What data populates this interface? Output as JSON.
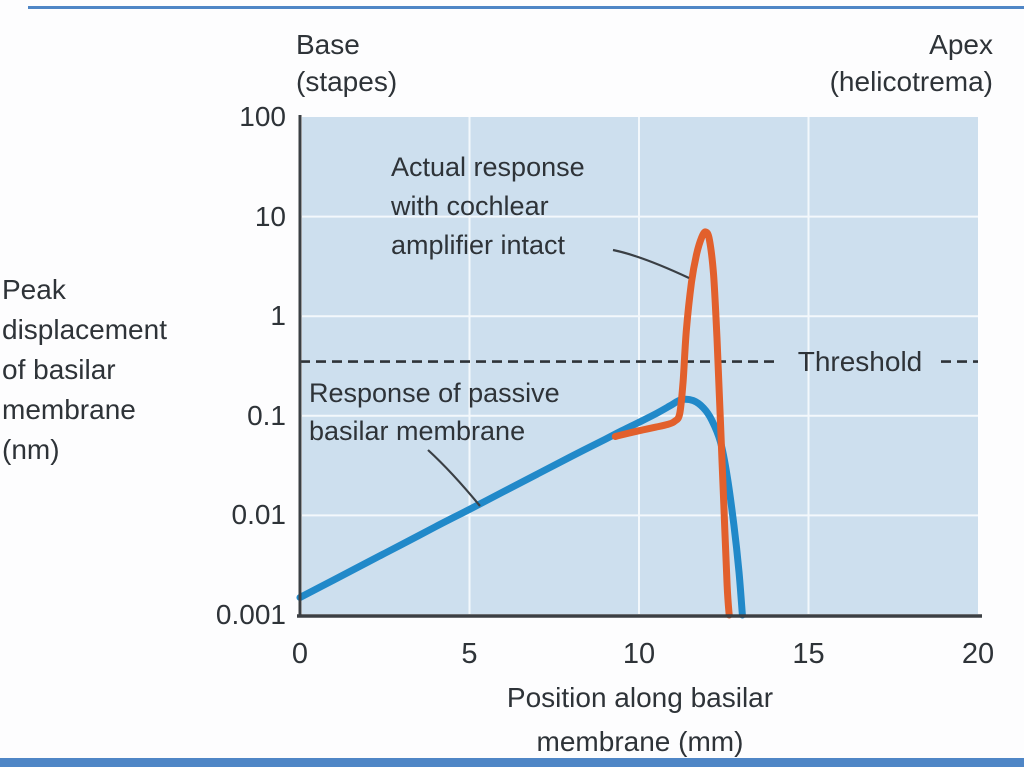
{
  "labels": {
    "base": "Base\n(stapes)",
    "apex": "Apex\n(helicotrema)"
  },
  "annotations": {
    "active_curve": "Actual response\nwith cochlear\namplifier intact",
    "passive_curve": "Response of passive\nbasilar membrane",
    "threshold": "Threshold"
  },
  "colors": {
    "panel_bg": "#cddfee",
    "grid": "#f3f8fc",
    "passive_curve": "#2189c9",
    "active_curve": "#e2602c",
    "axis": "#3b3f43",
    "text": "#2e3338",
    "accent_bar": "#4f86c6",
    "callout": "#3a3f44"
  },
  "chart_data": {
    "type": "line",
    "title": "",
    "xlabel": "Position along basilar\nmembrane (mm)",
    "ylabel": "Peak\ndisplacement\nof basilar\nmembrane\n(nm)",
    "x_scale": "linear",
    "y_scale": "log",
    "xlim": [
      0,
      20
    ],
    "ylim": [
      0.001,
      100
    ],
    "x_ticks": {
      "values": [
        0,
        5,
        10,
        15,
        20
      ],
      "labels": [
        "0",
        "5",
        "10",
        "15",
        "20"
      ]
    },
    "y_ticks": {
      "values": [
        100,
        10,
        1,
        0.1,
        0.01,
        0.001
      ],
      "labels": [
        "100",
        "10",
        "1",
        "0.1",
        "0.01",
        "0.001"
      ]
    },
    "x_gridlines": [
      5,
      10,
      15
    ],
    "y_gridlines": [
      10,
      1,
      0.1,
      0.01
    ],
    "grid": "on",
    "legend_position": "inline-annotations",
    "threshold_line": {
      "value": 0.35,
      "style": "dashed",
      "label": "Threshold"
    },
    "series": [
      {
        "name": "Response of passive basilar membrane",
        "color_key": "passive_curve",
        "points": [
          [
            0,
            0.0015
          ],
          [
            1,
            0.00225
          ],
          [
            2,
            0.0034
          ],
          [
            3,
            0.0051
          ],
          [
            4,
            0.0077
          ],
          [
            5,
            0.0115
          ],
          [
            6,
            0.0173
          ],
          [
            7,
            0.026
          ],
          [
            8,
            0.039
          ],
          [
            9,
            0.058
          ],
          [
            9.5,
            0.071
          ],
          [
            10,
            0.086
          ],
          [
            10.5,
            0.105
          ],
          [
            10.9,
            0.125
          ],
          [
            11.25,
            0.145
          ],
          [
            11.6,
            0.142
          ],
          [
            11.9,
            0.12
          ],
          [
            12.15,
            0.09
          ],
          [
            12.4,
            0.055
          ],
          [
            12.6,
            0.025
          ],
          [
            12.8,
            0.008
          ],
          [
            12.95,
            0.0027
          ],
          [
            13.05,
            0.001
          ]
        ]
      },
      {
        "name": "Actual response with cochlear amplifier intact",
        "color_key": "active_curve",
        "points": [
          [
            9.3,
            0.062
          ],
          [
            9.7,
            0.067
          ],
          [
            10.1,
            0.072
          ],
          [
            10.5,
            0.077
          ],
          [
            10.85,
            0.082
          ],
          [
            11.05,
            0.088
          ],
          [
            11.2,
            0.105
          ],
          [
            11.3,
            0.22
          ],
          [
            11.4,
            0.75
          ],
          [
            11.55,
            2.2
          ],
          [
            11.7,
            4.2
          ],
          [
            11.85,
            6.2
          ],
          [
            11.97,
            7.0
          ],
          [
            12.08,
            5.8
          ],
          [
            12.2,
            2.6
          ],
          [
            12.3,
            0.6
          ],
          [
            12.4,
            0.09
          ],
          [
            12.5,
            0.013
          ],
          [
            12.6,
            0.002
          ],
          [
            12.66,
            0.001
          ]
        ]
      }
    ]
  }
}
